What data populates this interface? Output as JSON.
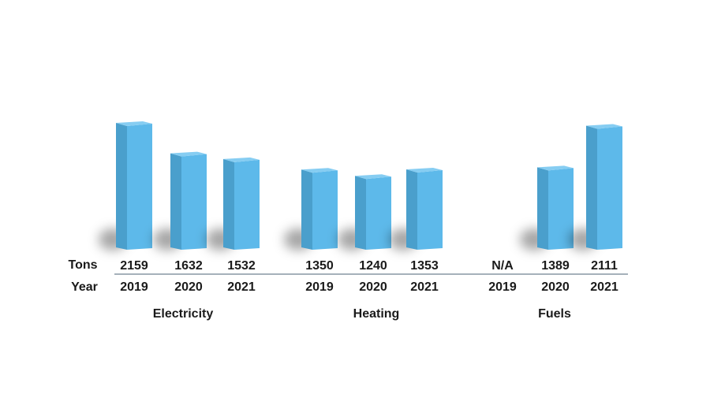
{
  "chart_data": {
    "type": "bar",
    "row_labels": {
      "value": "Tons",
      "year": "Year"
    },
    "groups": [
      {
        "name": "Electricity",
        "bars": [
          {
            "year": "2019",
            "value": 2159,
            "label": "2159"
          },
          {
            "year": "2020",
            "value": 1632,
            "label": "1632"
          },
          {
            "year": "2021",
            "value": 1532,
            "label": "1532"
          }
        ]
      },
      {
        "name": "Heating",
        "bars": [
          {
            "year": "2019",
            "value": 1350,
            "label": "1350"
          },
          {
            "year": "2020",
            "value": 1240,
            "label": "1240"
          },
          {
            "year": "2021",
            "value": 1353,
            "label": "1353"
          }
        ]
      },
      {
        "name": "Fuels",
        "bars": [
          {
            "year": "2019",
            "value": null,
            "label": "N/A"
          },
          {
            "year": "2020",
            "value": 1389,
            "label": "1389"
          },
          {
            "year": "2021",
            "value": 2111,
            "label": "2111"
          }
        ]
      }
    ],
    "colors": {
      "bar_front": "#5db9ea",
      "bar_side": "#4a9fcc",
      "bar_top": "#86cdf2",
      "divider": "#6f8290"
    }
  }
}
